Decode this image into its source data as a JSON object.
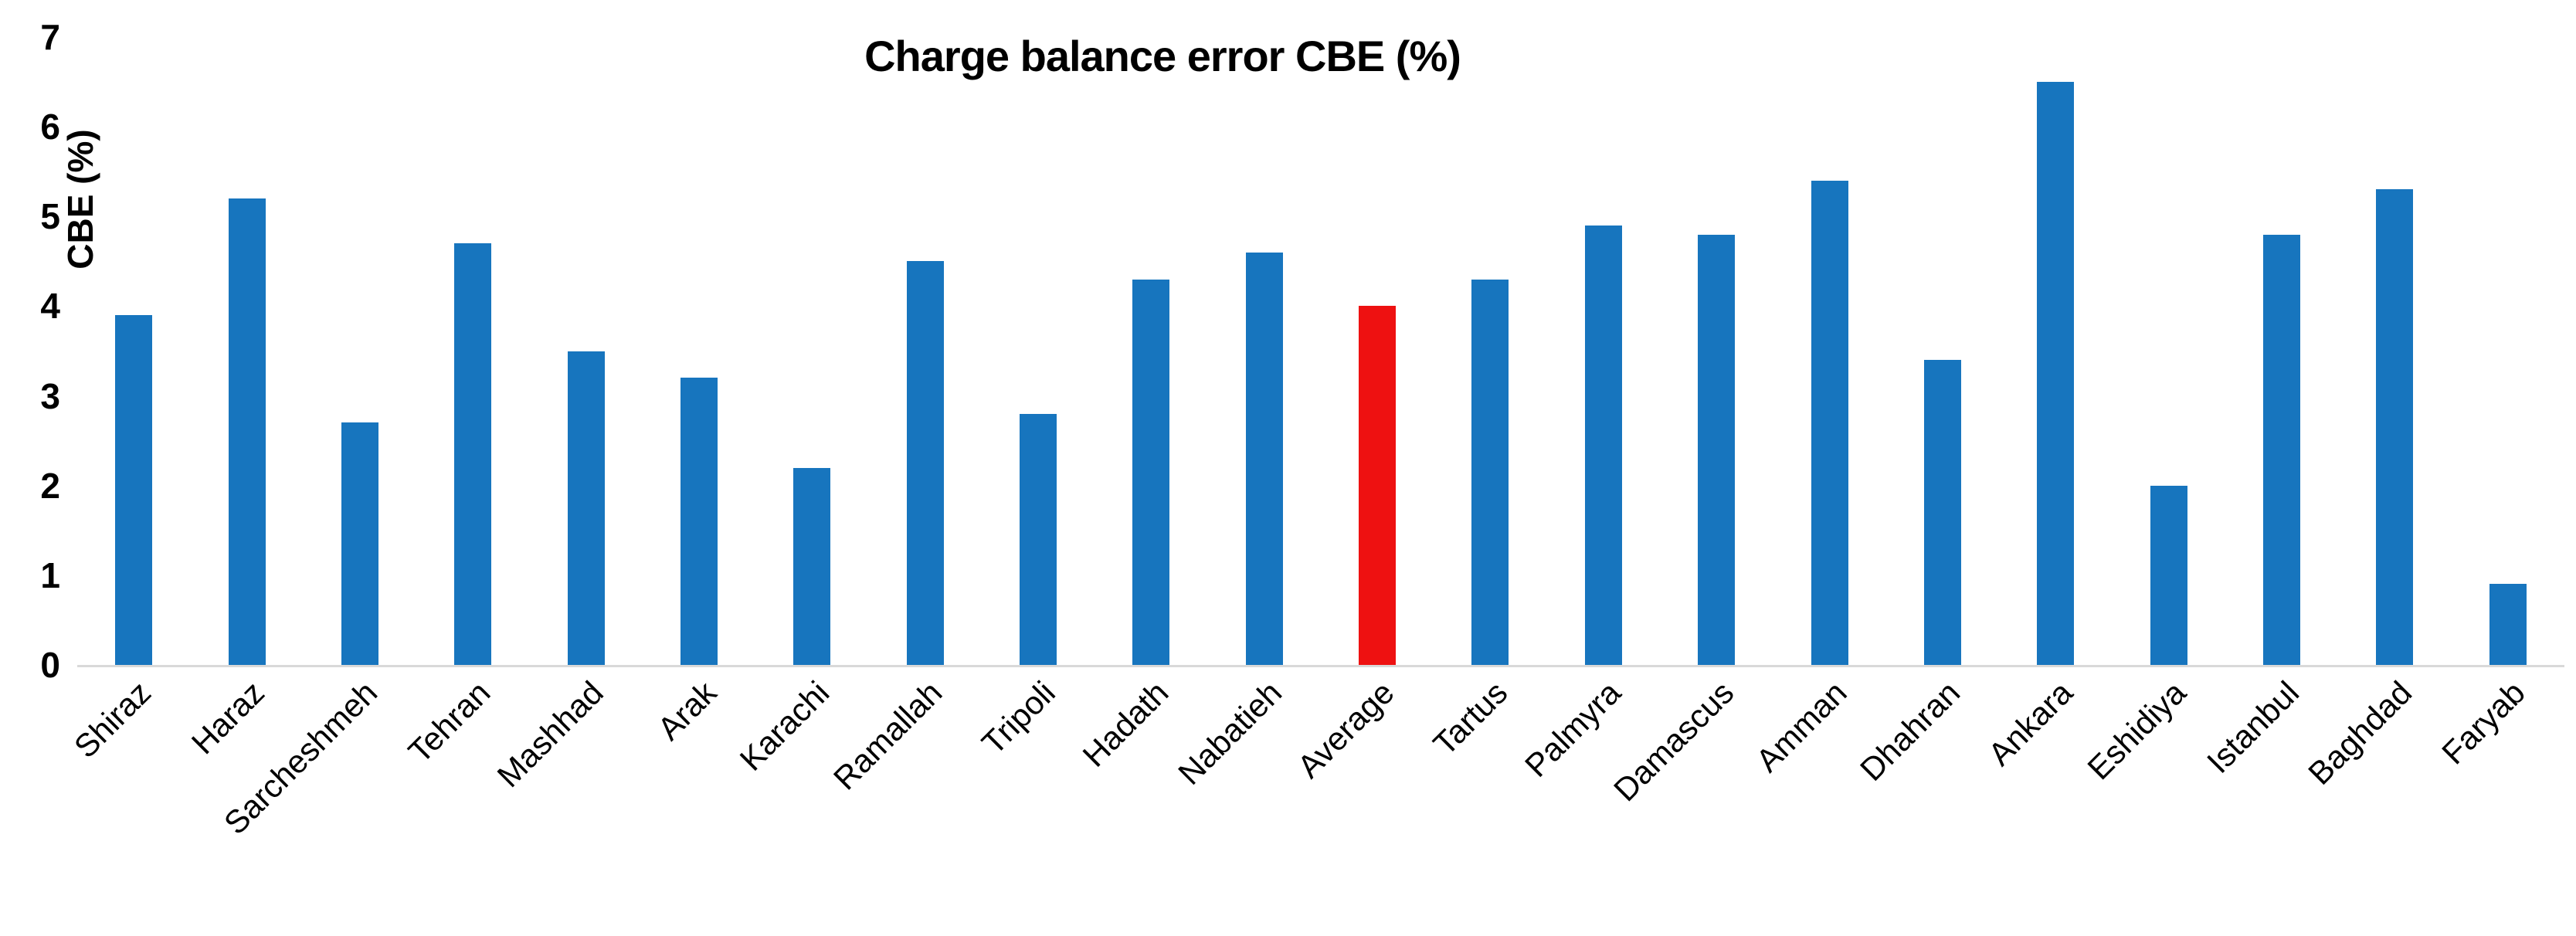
{
  "chart_data": {
    "type": "bar",
    "title": "Charge balance error CBE (%)",
    "xlabel": "",
    "ylabel": "CBE (%)",
    "categories": [
      "Shiraz",
      "Haraz",
      "Sarcheshmeh",
      "Tehran",
      "Mashhad",
      "Arak",
      "Karachi",
      "Ramallah",
      "Tripoli",
      "Hadath",
      "Nabatieh",
      "Average",
      "Tartus",
      "Palmyra",
      "Damascus",
      "Amman",
      "Dhahran",
      "Ankara",
      "Eshidiya",
      "Istanbul",
      "Baghdad",
      "Faryab"
    ],
    "values": [
      3.9,
      5.2,
      2.7,
      4.7,
      3.5,
      3.2,
      2.2,
      4.5,
      2.8,
      4.3,
      4.6,
      4.0,
      4.3,
      4.9,
      4.8,
      5.4,
      3.4,
      6.5,
      2.0,
      4.8,
      5.3,
      0.9
    ],
    "highlight_index": 11,
    "highlight_category": "Average",
    "yticks": [
      0,
      1,
      2,
      3,
      4,
      5,
      6,
      7
    ],
    "ylim": [
      0,
      7
    ],
    "grid": false,
    "legend": "none",
    "x_label_rotation_deg": 45
  },
  "colors": {
    "bar": "#1775BE",
    "highlight_bar": "#EE1111",
    "axis_line": "#D9D9D9",
    "text": "#000000",
    "background": "#FFFFFF"
  }
}
